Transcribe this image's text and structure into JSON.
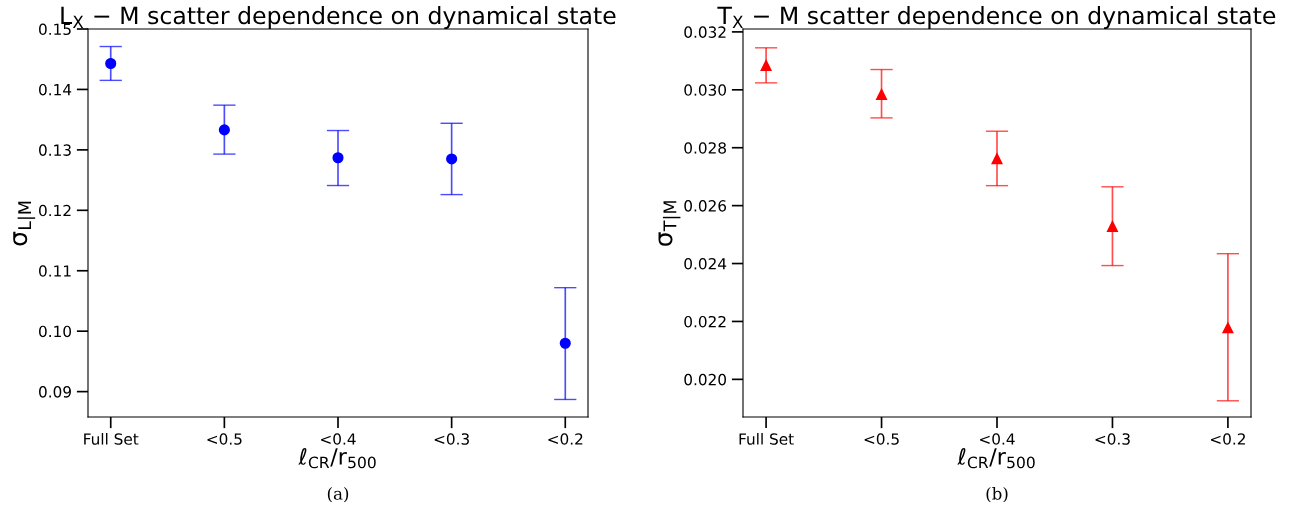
{
  "chart_data": [
    {
      "type": "scatter",
      "title": "L$_{X}$ − M scatter dependence on dynamical state",
      "xlabel": "ℓ$_{CR}$/r$_{500}$",
      "ylabel": "σ$_{L|M}$",
      "annotations": [
        "(a)"
      ],
      "categories": [
        "Full Set",
        "<0.5",
        "<0.4",
        "<0.3",
        "<0.2"
      ],
      "series": [
        {
          "color": "#0000ff",
          "values": [
            0.1443,
            0.1333,
            0.1287,
            0.1285,
            0.098
          ],
          "errors": [
            [
              0.1415,
              0.1471
            ],
            [
              0.1293,
              0.1374
            ],
            [
              0.1241,
              0.1332
            ],
            [
              0.1226,
              0.1344
            ],
            [
              0.0887,
              0.1072
            ]
          ],
          "marker": "circle"
        }
      ],
      "ylim": [
        0.0858,
        0.15
      ],
      "yticks": [
        {
          "value": 0.09,
          "label": "0.09"
        },
        {
          "value": 0.1,
          "label": "0.10"
        },
        {
          "value": 0.11,
          "label": "0.11"
        },
        {
          "value": 0.12,
          "label": "0.12"
        },
        {
          "value": 0.13,
          "label": "0.13"
        },
        {
          "value": 0.14,
          "label": "0.14"
        },
        {
          "value": 0.15,
          "label": "0.15"
        }
      ],
      "grid": false
    },
    {
      "type": "scatter",
      "title": "T$_{X}$ − M scatter dependence on dynamical state",
      "xlabel": "ℓ$_{CR}$/r$_{500}$",
      "ylabel": "σ$_{T|M}$",
      "annotations": [
        "(b)"
      ],
      "categories": [
        "Full Set",
        "<0.5",
        "<0.4",
        "<0.3",
        "<0.2"
      ],
      "series": [
        {
          "color": "#ff0000",
          "values": [
            0.03084,
            0.02984,
            0.02762,
            0.02528,
            0.02178
          ],
          "errors": [
            [
              0.03024,
              0.03145
            ],
            [
              0.02903,
              0.0307
            ],
            [
              0.02669,
              0.02857
            ],
            [
              0.02393,
              0.02665
            ],
            [
              0.01926,
              0.02434
            ]
          ],
          "marker": "triangle"
        }
      ],
      "ylim": [
        0.0187,
        0.0321
      ],
      "yticks": [
        {
          "value": 0.02,
          "label": "0.020"
        },
        {
          "value": 0.022,
          "label": "0.022"
        },
        {
          "value": 0.024,
          "label": "0.024"
        },
        {
          "value": 0.026,
          "label": "0.026"
        },
        {
          "value": 0.028,
          "label": "0.028"
        },
        {
          "value": 0.03,
          "label": "0.030"
        },
        {
          "value": 0.032,
          "label": "0.032"
        }
      ],
      "grid": false
    }
  ]
}
